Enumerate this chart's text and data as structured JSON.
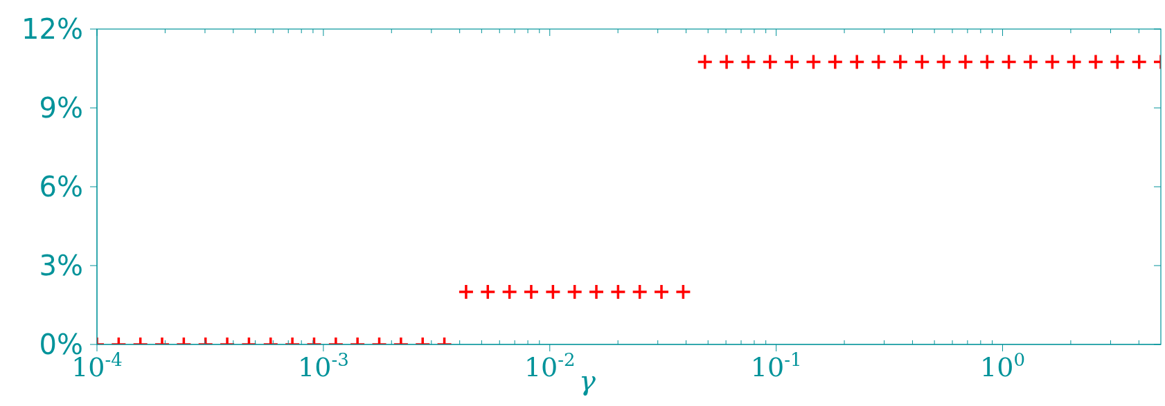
{
  "chart_data": {
    "type": "scatter",
    "xlabel": "γ",
    "log": "x",
    "marker": "cross",
    "grid": false,
    "xlim": [
      0.0001,
      5
    ],
    "xticks": [
      {
        "value": 0.0001,
        "label": "10$^{-4}$"
      },
      {
        "value": 0.001,
        "label": "10$^{-3}$"
      },
      {
        "value": 0.01,
        "label": "10$^{-2}$"
      },
      {
        "value": 0.1,
        "label": "10$^{-1}$"
      },
      {
        "value": 1,
        "label": "10$^{0}$"
      }
    ],
    "ylim": [
      0,
      12
    ],
    "yticks": [
      {
        "value": 0,
        "label": "0%"
      },
      {
        "value": 3,
        "label": "3%"
      },
      {
        "value": 6,
        "label": "6%"
      },
      {
        "value": 9,
        "label": "9%"
      },
      {
        "value": 12,
        "label": "12%"
      }
    ],
    "series": [
      {
        "color": "#ff0000",
        "x": [
          0.0001,
          0.0001247,
          0.0001555,
          0.0001939,
          0.0002418,
          0.0003016,
          0.0003761,
          0.0004691,
          0.000585,
          0.0007296,
          0.0009099,
          0.001135,
          0.001415,
          0.001765,
          0.002201,
          0.002745,
          0.003423,
          0.004269,
          0.005324,
          0.00664,
          0.008279,
          0.01033,
          0.01288,
          0.01606,
          0.02003,
          0.02497,
          0.03114,
          0.03884,
          0.04844,
          0.0604,
          0.07534,
          0.09395,
          0.1172,
          0.1461,
          0.1822,
          0.2273,
          0.2834,
          0.3534,
          0.4408,
          0.5496,
          0.6855,
          0.8548,
          1.066,
          1.329,
          1.658,
          2.067,
          2.578,
          3.215,
          4.01,
          5
        ],
        "values": [
          0,
          0,
          0,
          0,
          0,
          0,
          0,
          0,
          0,
          0,
          0,
          0,
          0,
          0,
          0,
          0,
          0,
          2,
          2,
          2,
          2,
          2,
          2,
          2,
          2,
          2,
          2,
          2,
          10.75,
          10.75,
          10.75,
          10.75,
          10.75,
          10.75,
          10.75,
          10.75,
          10.75,
          10.75,
          10.75,
          10.75,
          10.75,
          10.75,
          10.75,
          10.75,
          10.75,
          10.75,
          10.75,
          10.75,
          10.75,
          10.75
        ]
      }
    ]
  }
}
